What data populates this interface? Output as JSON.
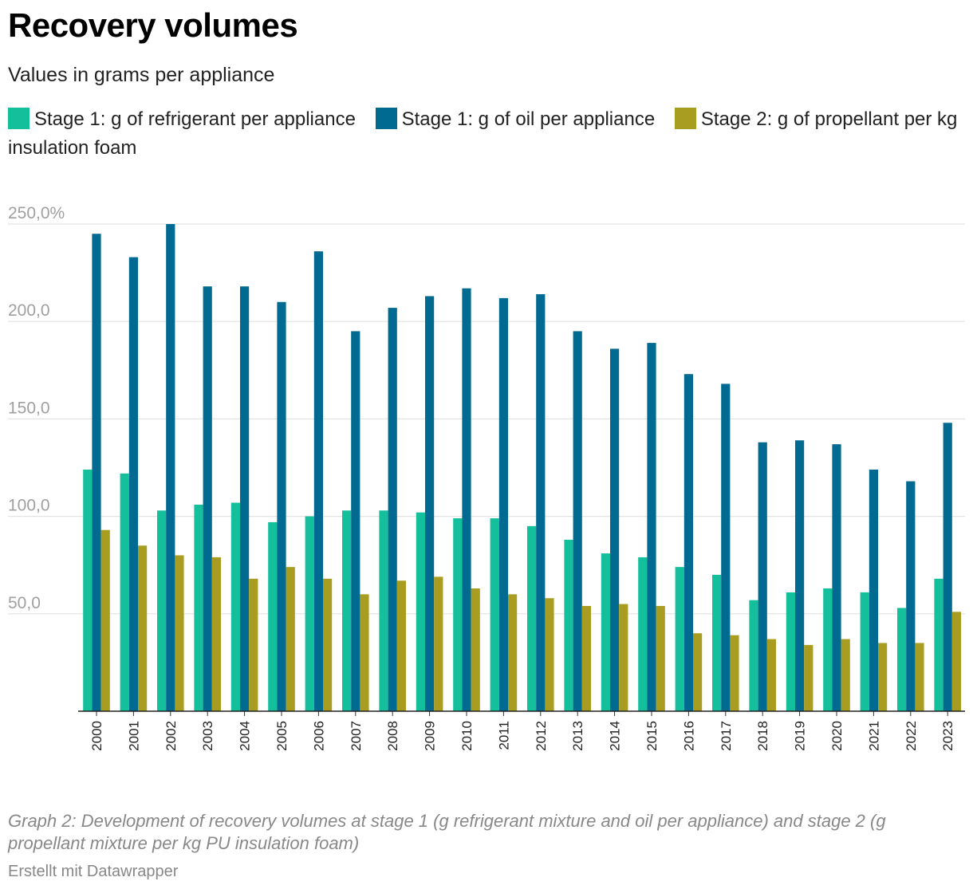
{
  "chart_data": {
    "type": "bar",
    "title": "Recovery volumes",
    "subtitle": "Values in grams per appliance",
    "categories": [
      "2000",
      "2001",
      "2002",
      "2003",
      "2004",
      "2005",
      "2006",
      "2007",
      "2008",
      "2009",
      "2010",
      "2011",
      "2012",
      "2013",
      "2014",
      "2015",
      "2016",
      "2017",
      "2018",
      "2019",
      "2020",
      "2021",
      "2022",
      "2023"
    ],
    "series": [
      {
        "name": "Stage 1: g of refrigerant per appliance",
        "color": "#14bf9c",
        "values": [
          124,
          122,
          103,
          106,
          107,
          97,
          100,
          103,
          103,
          102,
          99,
          99,
          95,
          88,
          81,
          79,
          74,
          70,
          57,
          61,
          63,
          61,
          53,
          68
        ]
      },
      {
        "name": "Stage 1: g of oil per appliance",
        "color": "#006a90",
        "values": [
          245,
          233,
          250,
          218,
          218,
          210,
          236,
          195,
          207,
          213,
          217,
          212,
          214,
          195,
          186,
          189,
          173,
          168,
          138,
          139,
          137,
          124,
          118,
          148
        ]
      },
      {
        "name": "Stage 2: g of propellant per kg insulation foam",
        "color": "#a89d21",
        "values": [
          93,
          85,
          80,
          79,
          68,
          74,
          68,
          60,
          67,
          69,
          63,
          60,
          58,
          54,
          55,
          54,
          40,
          39,
          37,
          34,
          37,
          35,
          35,
          51
        ]
      }
    ],
    "yticks": [
      "250,0%",
      "200,0",
      "150,0",
      "100,0",
      "50,0"
    ],
    "ytick_values": [
      250,
      200,
      150,
      100,
      50
    ],
    "ylim": [
      0,
      250
    ],
    "grid": true,
    "legend_position": "top"
  },
  "note": "Graph 2: Development of recovery volumes at stage 1 (g refrigerant mixture and oil per appliance) and stage 2 (g propellant mixture per kg PU insulation foam)",
  "credit": "Erstellt mit Datawrapper"
}
